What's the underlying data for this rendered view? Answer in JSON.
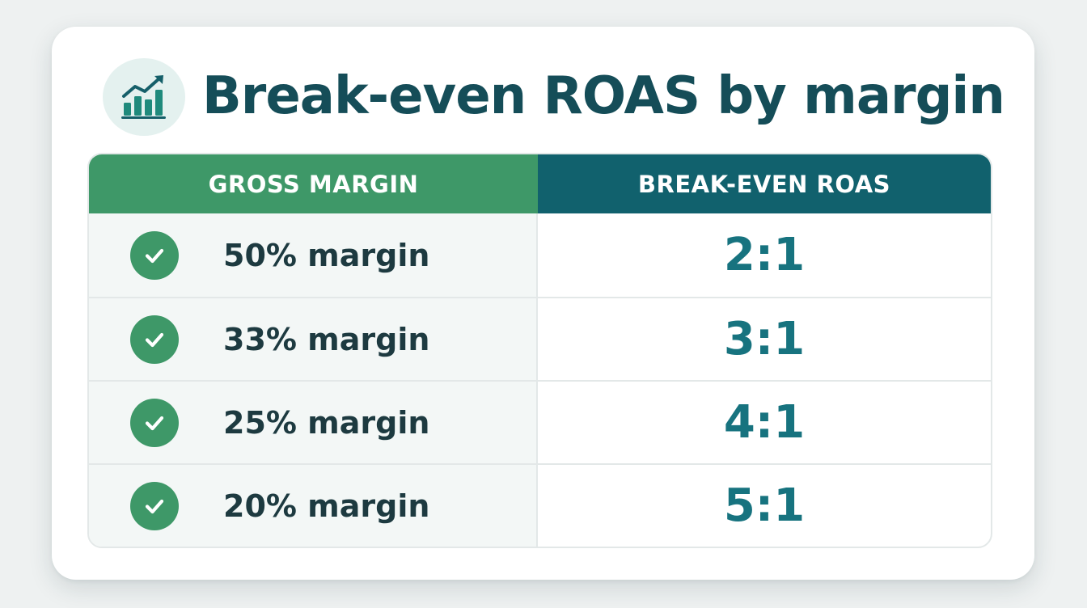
{
  "title": "Break-even ROAS by margin",
  "icons": {
    "title_icon": "bar-chart-trend-icon",
    "row_icon": "check-circle-icon"
  },
  "table": {
    "headers": {
      "margin": "GROSS MARGIN",
      "roas": "BREAK-EVEN ROAS"
    },
    "rows": [
      {
        "margin": "50% margin",
        "roas": "2:1"
      },
      {
        "margin": "33% margin",
        "roas": "3:1"
      },
      {
        "margin": "25% margin",
        "roas": "4:1"
      },
      {
        "margin": "20% margin",
        "roas": "5:1"
      }
    ]
  },
  "colors": {
    "margin_header": "#3e9868",
    "roas_header": "#11616d",
    "title_text": "#154d58",
    "roas_text": "#17737f",
    "check": "#3e9868"
  }
}
